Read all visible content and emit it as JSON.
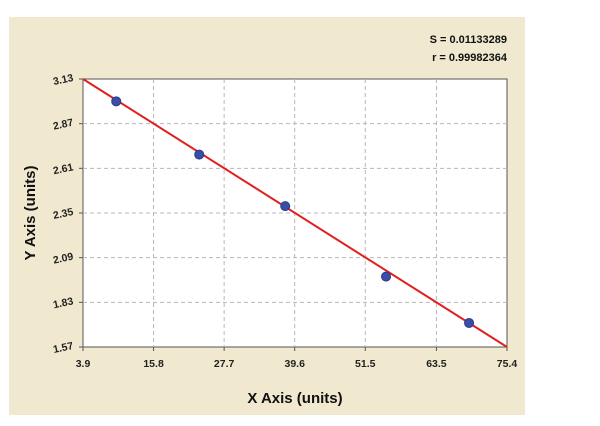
{
  "chart_data": {
    "type": "scatter",
    "xlabel": "X Axis (units)",
    "ylabel": "Y Axis (units)",
    "xlim": [
      3.9,
      75.4
    ],
    "ylim": [
      1.57,
      3.13
    ],
    "x_ticks": [
      "3.9",
      "15.8",
      "27.7",
      "39.6",
      "51.5",
      "63.5",
      "75.4"
    ],
    "y_ticks": [
      "3.13",
      "2.87",
      "2.61",
      "2.35",
      "2.09",
      "1.83",
      "1.57"
    ],
    "grid": true,
    "points": [
      {
        "x": 9.5,
        "y": 3.0
      },
      {
        "x": 23.5,
        "y": 2.69
      },
      {
        "x": 38.0,
        "y": 2.39
      },
      {
        "x": 55.0,
        "y": 1.98
      },
      {
        "x": 69.0,
        "y": 1.71
      }
    ],
    "fit_line": {
      "x": [
        3.9,
        75.4
      ],
      "y": [
        3.13,
        1.57
      ]
    },
    "annotations": {
      "s_text": "S = 0.01133289",
      "r_text": "r = 0.99982364"
    },
    "colors": {
      "background": "#f0e9cf",
      "plot_area": "#ffffff",
      "grid": "#b8b8b8",
      "fit_line": "#e02020",
      "point": "#3a4ea8"
    }
  }
}
